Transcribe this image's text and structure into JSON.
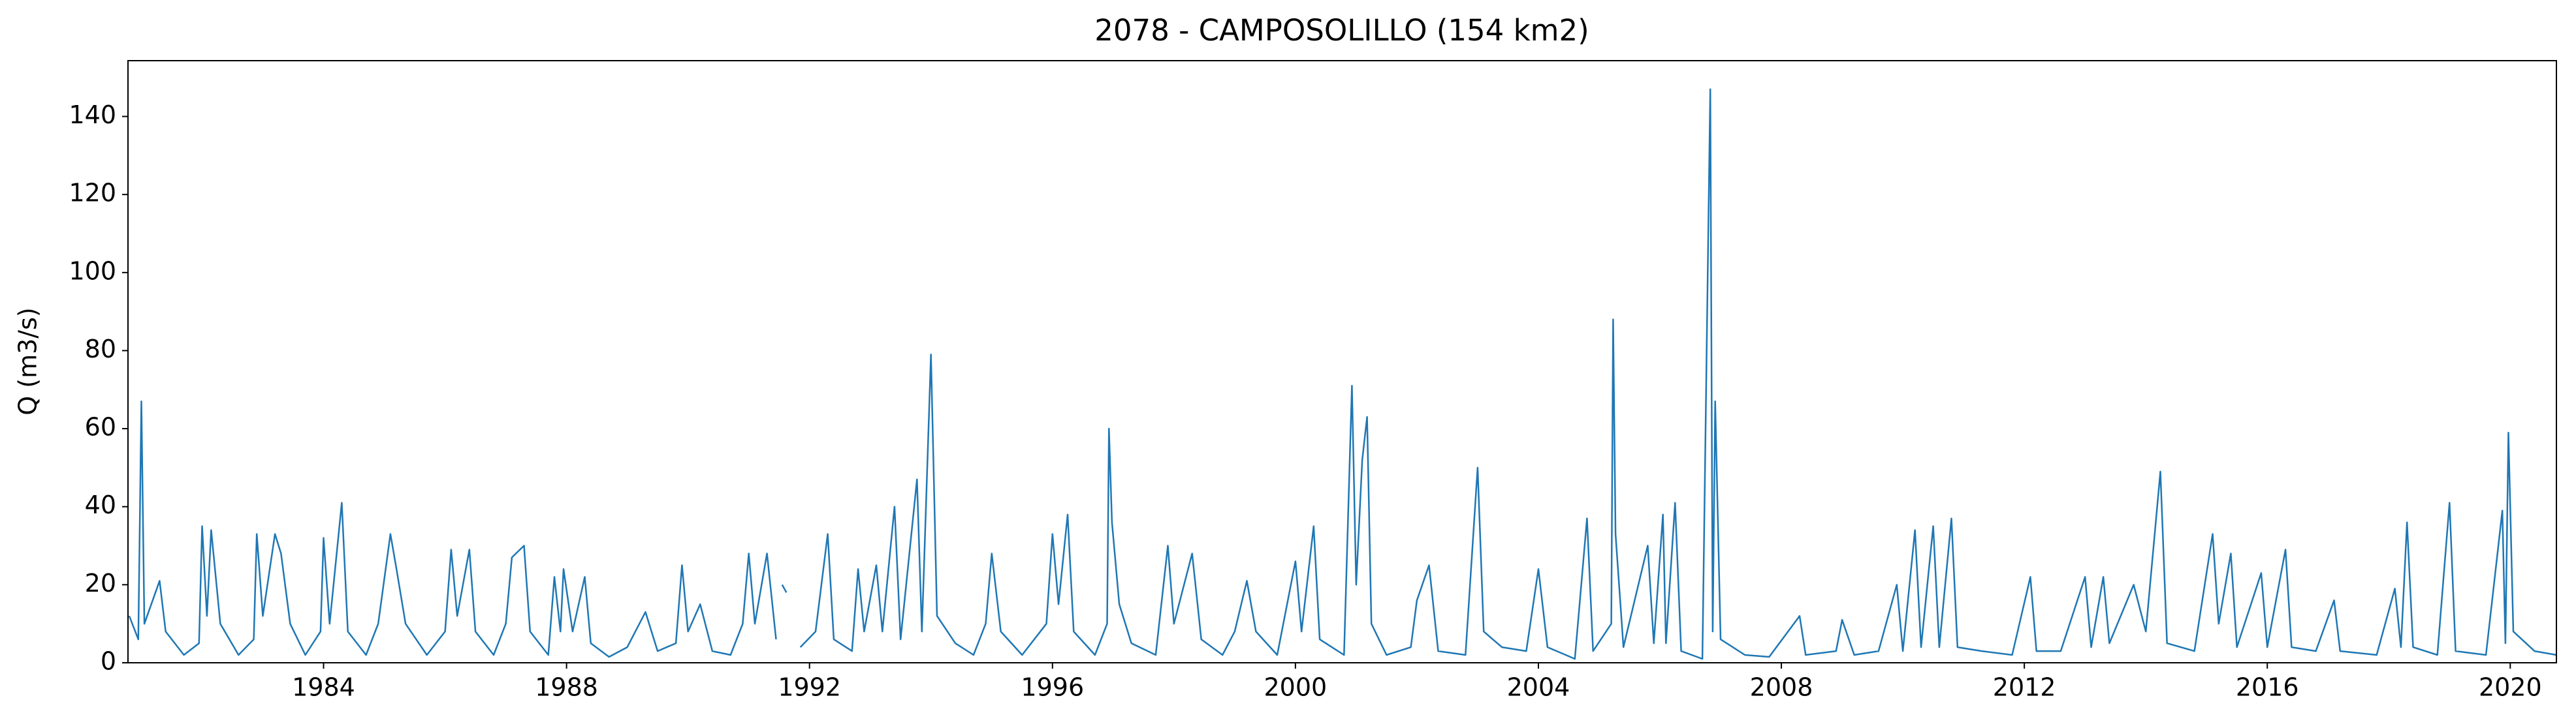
{
  "chart_data": {
    "type": "line",
    "title": "2078 - CAMPOSOLILLO (154 km2)",
    "y_label": "Q (m3/s)",
    "color": "#1f77b4",
    "x": [
      1980.8,
      1980.95,
      1981.0,
      1981.05,
      1981.3,
      1981.4,
      1981.7,
      1981.95,
      1982.0,
      1982.08,
      1982.15,
      1982.3,
      1982.6,
      1982.85,
      1982.9,
      1983.0,
      1983.2,
      1983.3,
      1983.45,
      1983.7,
      1983.95,
      1984.0,
      1984.1,
      1984.3,
      1984.4,
      1984.7,
      1984.9,
      1985.1,
      1985.2,
      1985.35,
      1985.7,
      1986.0,
      1986.1,
      1986.2,
      1986.4,
      1986.5,
      1986.8,
      1987.0,
      1987.1,
      1987.3,
      1987.4,
      1987.7,
      1987.8,
      1987.9,
      1987.95,
      1988.1,
      1988.3,
      1988.4,
      1988.7,
      1989.0,
      1989.3,
      1989.5,
      1989.8,
      1989.9,
      1990.0,
      1990.2,
      1990.4,
      1990.7,
      1990.9,
      1991.0,
      1991.1,
      1991.3,
      1991.45,
      1991.5,
      1991.55,
      1991.62,
      1991.7,
      1991.85,
      1992.1,
      1992.3,
      1992.4,
      1992.7,
      1992.8,
      1992.9,
      1993.1,
      1993.2,
      1993.4,
      1993.5,
      1993.77,
      1993.85,
      1994.0,
      1994.1,
      1994.4,
      1994.7,
      1994.9,
      1995.0,
      1995.15,
      1995.5,
      1995.9,
      1996.0,
      1996.1,
      1996.25,
      1996.35,
      1996.7,
      1996.9,
      1996.93,
      1996.98,
      1997.1,
      1997.3,
      1997.7,
      1997.9,
      1998.0,
      1998.3,
      1998.45,
      1998.8,
      1999.0,
      1999.2,
      1999.35,
      1999.7,
      2000.0,
      2000.1,
      2000.3,
      2000.4,
      2000.8,
      2000.93,
      2001.0,
      2001.1,
      2001.18,
      2001.25,
      2001.5,
      2001.9,
      2002.0,
      2002.2,
      2002.35,
      2002.8,
      2003.0,
      2003.1,
      2003.4,
      2003.8,
      2004.0,
      2004.15,
      2004.6,
      2004.8,
      2004.9,
      2005.2,
      2005.23,
      2005.27,
      2005.4,
      2005.8,
      2005.9,
      2006.05,
      2006.1,
      2006.25,
      2006.35,
      2006.7,
      2006.83,
      2006.87,
      2006.91,
      2007.0,
      2007.4,
      2007.8,
      2008.3,
      2008.4,
      2008.9,
      2009.0,
      2009.2,
      2009.6,
      2009.9,
      2010.0,
      2010.2,
      2010.3,
      2010.5,
      2010.6,
      2010.8,
      2010.9,
      2011.3,
      2011.8,
      2012.1,
      2012.2,
      2012.6,
      2013.0,
      2013.1,
      2013.3,
      2013.4,
      2013.8,
      2014.0,
      2014.24,
      2014.35,
      2014.8,
      2015.1,
      2015.2,
      2015.4,
      2015.5,
      2015.9,
      2016.0,
      2016.3,
      2016.4,
      2016.8,
      2017.1,
      2017.2,
      2017.8,
      2018.1,
      2018.2,
      2018.3,
      2018.4,
      2018.8,
      2019.0,
      2019.1,
      2019.6,
      2019.87,
      2019.92,
      2019.97,
      2020.05,
      2020.4,
      2020.76
    ],
    "values": [
      12,
      6,
      67,
      10,
      21,
      8,
      2,
      5,
      35,
      12,
      34,
      10,
      2,
      6,
      33,
      12,
      33,
      28,
      10,
      2,
      8,
      32,
      10,
      41,
      8,
      2,
      10,
      33,
      24,
      10,
      2,
      8,
      29,
      12,
      29,
      8,
      2,
      10,
      27,
      30,
      8,
      2,
      22,
      8,
      24,
      8,
      22,
      5,
      1.5,
      4,
      13,
      3,
      5,
      25,
      8,
      15,
      3,
      2,
      10,
      28,
      10,
      28,
      6,
      null,
      20,
      18,
      null,
      4,
      8,
      33,
      6,
      3,
      24,
      8,
      25,
      8,
      40,
      6,
      47,
      8,
      79,
      12,
      5,
      2,
      10,
      28,
      8,
      2,
      10,
      33,
      15,
      38,
      8,
      2,
      10,
      60,
      36,
      15,
      5,
      2,
      30,
      10,
      28,
      6,
      2,
      8,
      21,
      8,
      2,
      26,
      8,
      35,
      6,
      2,
      71,
      20,
      52,
      63,
      10,
      2,
      4,
      16,
      25,
      3,
      2,
      50,
      8,
      4,
      3,
      24,
      4,
      1,
      37,
      3,
      10,
      88,
      33,
      4,
      30,
      5,
      38,
      5,
      41,
      3,
      1,
      147,
      8,
      67,
      6,
      2,
      1.5,
      12,
      2,
      3,
      11,
      2,
      3,
      20,
      3,
      34,
      4,
      35,
      4,
      37,
      4,
      3,
      2,
      22,
      3,
      3,
      22,
      4,
      22,
      5,
      20,
      8,
      49,
      5,
      3,
      33,
      10,
      28,
      4,
      23,
      4,
      29,
      4,
      3,
      16,
      3,
      2,
      19,
      4,
      36,
      4,
      2,
      41,
      3,
      2,
      39,
      5,
      59,
      8,
      3,
      2
    ],
    "xlim": [
      1980.78,
      2020.76
    ],
    "xticks": [
      1984,
      1988,
      1992,
      1996,
      2000,
      2004,
      2008,
      2012,
      2016,
      2020
    ],
    "ylim": [
      0,
      154.3
    ],
    "yticks": [
      0,
      20,
      40,
      60,
      80,
      100,
      120,
      140
    ],
    "grid": false
  }
}
